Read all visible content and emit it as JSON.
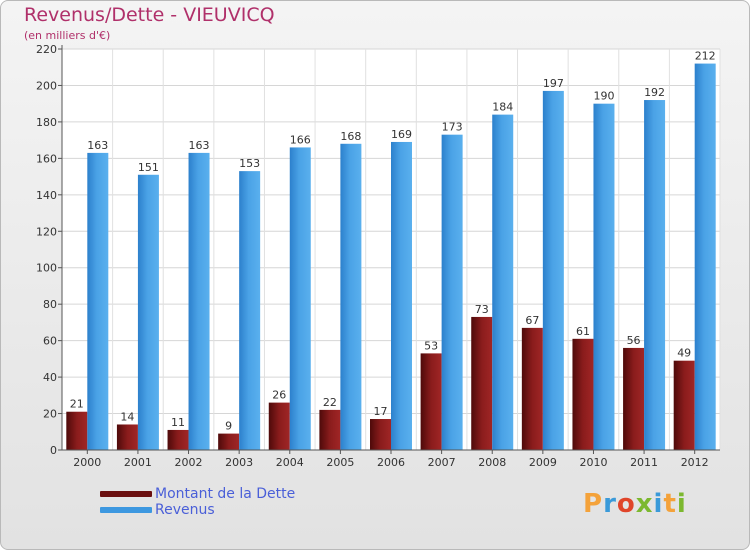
{
  "header": {
    "title": "Revenus/Dette - VIEUVICQ",
    "subtitle": "(en milliers d'€)"
  },
  "legend": {
    "items": [
      {
        "label": "Montant de la Dette",
        "color": "#7a1414"
      },
      {
        "label": "Revenus",
        "color": "#3d98e0"
      }
    ]
  },
  "logo": {
    "text": "Proxiti",
    "letter_colors": [
      "#f4a23a",
      "#3a9ad9",
      "#e0452a",
      "#7cb82f",
      "#3a9ad9",
      "#f4a23a",
      "#7cb82f"
    ]
  },
  "chart_data": {
    "type": "bar",
    "categories": [
      "2000",
      "2001",
      "2002",
      "2003",
      "2004",
      "2005",
      "2006",
      "2007",
      "2008",
      "2009",
      "2010",
      "2011",
      "2012"
    ],
    "series": [
      {
        "name": "Montant de la Dette",
        "color": "#7a1414",
        "values": [
          21,
          14,
          11,
          9,
          26,
          22,
          17,
          53,
          73,
          67,
          61,
          56,
          49
        ]
      },
      {
        "name": "Revenus",
        "color": "#3d98e0",
        "values": [
          163,
          151,
          163,
          153,
          166,
          168,
          169,
          173,
          184,
          197,
          190,
          192,
          212
        ]
      }
    ],
    "title": "Revenus/Dette - VIEUVICQ",
    "subtitle": "(en milliers d'€)",
    "xlabel": "",
    "ylabel": "",
    "ylim": [
      0,
      220
    ],
    "yticks": [
      0,
      20,
      40,
      60,
      80,
      100,
      120,
      140,
      160,
      180,
      200,
      220
    ],
    "grid": true,
    "legend_position": "bottom-left",
    "data_labels": true
  }
}
